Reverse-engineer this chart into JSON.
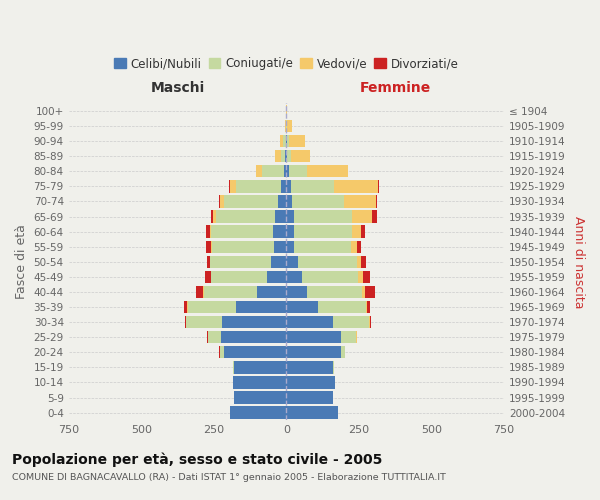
{
  "age_groups": [
    "100+",
    "95-99",
    "90-94",
    "85-89",
    "80-84",
    "75-79",
    "70-74",
    "65-69",
    "60-64",
    "55-59",
    "50-54",
    "45-49",
    "40-44",
    "35-39",
    "30-34",
    "25-29",
    "20-24",
    "15-19",
    "10-14",
    "5-9",
    "0-4"
  ],
  "birth_years": [
    "≤ 1904",
    "1905-1909",
    "1910-1914",
    "1915-1919",
    "1920-1924",
    "1925-1929",
    "1930-1934",
    "1935-1939",
    "1940-1944",
    "1945-1949",
    "1950-1954",
    "1955-1959",
    "1960-1964",
    "1965-1969",
    "1970-1974",
    "1975-1979",
    "1980-1984",
    "1985-1989",
    "1990-1994",
    "1995-1999",
    "2000-2004"
  ],
  "male": {
    "celibi": [
      0,
      0,
      2,
      3,
      8,
      18,
      28,
      38,
      45,
      42,
      52,
      65,
      100,
      175,
      220,
      225,
      215,
      180,
      185,
      180,
      195
    ],
    "coniugati": [
      0,
      1,
      8,
      15,
      75,
      155,
      185,
      205,
      215,
      215,
      210,
      195,
      185,
      165,
      125,
      45,
      12,
      3,
      0,
      0,
      0
    ],
    "vedovi": [
      0,
      2,
      12,
      22,
      22,
      22,
      15,
      9,
      4,
      2,
      1,
      1,
      1,
      1,
      1,
      0,
      0,
      0,
      0,
      0,
      0
    ],
    "divorziati": [
      0,
      0,
      0,
      0,
      0,
      4,
      4,
      6,
      12,
      17,
      12,
      20,
      25,
      12,
      4,
      4,
      4,
      0,
      0,
      0,
      0
    ]
  },
  "female": {
    "nubili": [
      0,
      0,
      2,
      3,
      8,
      15,
      20,
      25,
      28,
      28,
      42,
      55,
      72,
      110,
      160,
      190,
      190,
      160,
      168,
      162,
      178
    ],
    "coniugate": [
      0,
      1,
      6,
      12,
      65,
      150,
      180,
      200,
      200,
      195,
      200,
      192,
      188,
      163,
      125,
      50,
      12,
      3,
      0,
      0,
      0
    ],
    "vedove": [
      2,
      18,
      55,
      68,
      140,
      152,
      108,
      70,
      28,
      20,
      16,
      16,
      12,
      4,
      4,
      2,
      1,
      0,
      0,
      0,
      0
    ],
    "divorziate": [
      0,
      0,
      0,
      0,
      0,
      4,
      4,
      16,
      16,
      16,
      16,
      25,
      35,
      12,
      4,
      1,
      0,
      0,
      0,
      0,
      0
    ]
  },
  "colors": {
    "celibi": "#4a7ab5",
    "coniugati": "#c5d9a0",
    "vedovi": "#f5c96a",
    "divorziati": "#cc2222"
  },
  "title": "Popolazione per età, sesso e stato civile - 2005",
  "subtitle": "COMUNE DI BAGNACAVALLO (RA) - Dati ISTAT 1° gennaio 2005 - Elaborazione TUTTITALIA.IT",
  "xlabel_left": "Maschi",
  "xlabel_right": "Femmine",
  "ylabel_left": "Fasce di età",
  "ylabel_right": "Anni di nascita",
  "xlim": 750,
  "legend_labels": [
    "Celibi/Nubili",
    "Coniugati/e",
    "Vedovi/e",
    "Divorziati/e"
  ],
  "bg_color": "#f0f0eb"
}
